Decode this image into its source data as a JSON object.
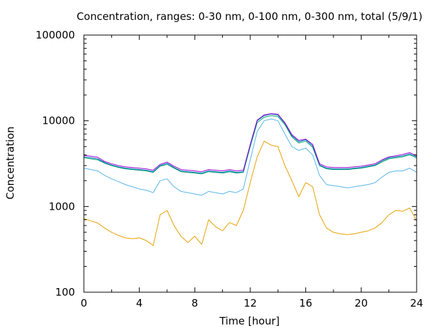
{
  "chart_data": {
    "type": "line",
    "title": "Concentration, ranges: 0-30 nm, 0-100 nm, 0-300 nm, total (5/9/1)",
    "xlabel": "Time [hour]",
    "ylabel": "Concentration",
    "xlim": [
      0,
      24
    ],
    "ylim": [
      100,
      100000
    ],
    "yscale": "log",
    "grid": false,
    "xticks": [
      0,
      4,
      8,
      12,
      16,
      20,
      24
    ],
    "xtick_labels": [
      "0",
      "4",
      "8",
      "12",
      "16",
      "20",
      "24"
    ],
    "yticks": [
      100,
      1000,
      10000,
      100000
    ],
    "ytick_labels": [
      "100",
      "1000",
      "10000",
      "100000"
    ],
    "x": [
      0,
      0.5,
      1,
      1.5,
      2,
      2.5,
      3,
      3.5,
      4,
      4.5,
      5,
      5.5,
      6,
      6.5,
      7,
      7.5,
      8,
      8.5,
      9,
      9.5,
      10,
      10.5,
      11,
      11.5,
      12,
      12.5,
      13,
      13.5,
      14,
      14.5,
      15,
      15.5,
      16,
      16.5,
      17,
      17.5,
      18,
      18.5,
      19,
      19.5,
      20,
      20.5,
      21,
      21.5,
      22,
      22.5,
      23,
      23.5,
      24
    ],
    "series": [
      {
        "color": "#e69f00",
        "values": [
          720,
          680,
          640,
          560,
          500,
          460,
          430,
          420,
          430,
          400,
          350,
          800,
          900,
          600,
          450,
          380,
          450,
          360,
          700,
          580,
          520,
          650,
          600,
          900,
          1900,
          3800,
          5800,
          5200,
          5000,
          3000,
          2000,
          1300,
          1900,
          1700,
          800,
          560,
          500,
          480,
          470,
          480,
          500,
          520,
          560,
          650,
          800,
          900,
          880,
          960,
          680
        ]
      },
      {
        "color": "#56b4e9",
        "values": [
          2800,
          2700,
          2600,
          2300,
          2100,
          1950,
          1800,
          1700,
          1600,
          1550,
          1450,
          2000,
          2100,
          1700,
          1500,
          1450,
          1400,
          1350,
          1500,
          1450,
          1400,
          1500,
          1450,
          1600,
          3500,
          7500,
          10000,
          10500,
          10000,
          7000,
          5000,
          4500,
          4800,
          4000,
          2300,
          1800,
          1750,
          1700,
          1650,
          1700,
          1750,
          1800,
          1900,
          2200,
          2500,
          2600,
          2600,
          2800,
          2500
        ]
      },
      {
        "color": "#009e73",
        "values": [
          3700,
          3600,
          3500,
          3200,
          3000,
          2850,
          2750,
          2700,
          2650,
          2600,
          2500,
          2950,
          3100,
          2800,
          2550,
          2500,
          2450,
          2400,
          2550,
          2500,
          2450,
          2550,
          2450,
          2500,
          5000,
          9500,
          11000,
          11500,
          11200,
          9000,
          6500,
          5500,
          5800,
          4900,
          3000,
          2750,
          2700,
          2700,
          2700,
          2750,
          2800,
          2900,
          3000,
          3300,
          3600,
          3700,
          3800,
          4000,
          3700
        ]
      },
      {
        "color": "#0072b2",
        "values": [
          3800,
          3700,
          3600,
          3250,
          3050,
          2900,
          2800,
          2750,
          2700,
          2650,
          2550,
          3000,
          3200,
          2850,
          2600,
          2550,
          2500,
          2450,
          2600,
          2550,
          2500,
          2600,
          2500,
          2550,
          5200,
          10000,
          11500,
          12000,
          11700,
          9300,
          6700,
          5700,
          6000,
          5100,
          3050,
          2800,
          2750,
          2750,
          2750,
          2800,
          2850,
          2950,
          3050,
          3400,
          3700,
          3800,
          3900,
          4100,
          3800
        ]
      },
      {
        "color": "#9400d3",
        "values": [
          3950,
          3850,
          3750,
          3350,
          3150,
          3000,
          2900,
          2850,
          2800,
          2750,
          2650,
          3100,
          3300,
          2950,
          2700,
          2650,
          2600,
          2550,
          2700,
          2650,
          2600,
          2700,
          2600,
          2650,
          5300,
          10200,
          11700,
          12100,
          11900,
          9500,
          6900,
          5900,
          6100,
          5300,
          3150,
          2900,
          2850,
          2850,
          2850,
          2900,
          2950,
          3050,
          3150,
          3500,
          3800,
          3900,
          4050,
          4250,
          3900
        ]
      }
    ]
  }
}
